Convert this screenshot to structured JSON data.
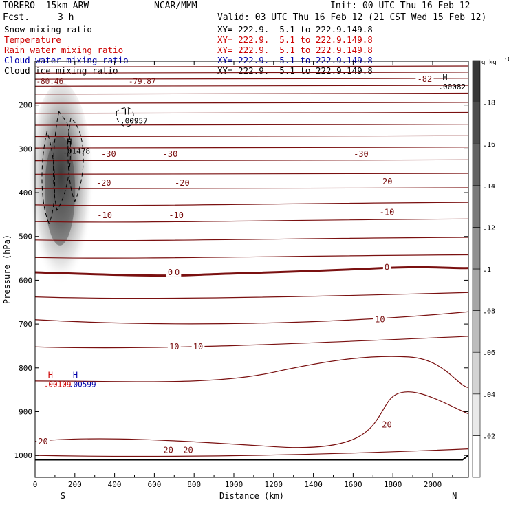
{
  "header": {
    "model": "TORERO  15km ARW",
    "fcst_label": "Fcst.",
    "fcst_value": "3 h",
    "center": "NCAR/MMM",
    "init": "Init: 00 UTC Thu 16 Feb 12",
    "valid": "Valid: 03 UTC Thu 16 Feb 12 (21 CST Wed 15 Feb 12)"
  },
  "fields": [
    {
      "label": "Snow mixing ratio",
      "xy": "XY= 222.9.  5.1 to 222.9.149.8",
      "color": "#000000"
    },
    {
      "label": "Temperature",
      "xy": "XY= 222.9.  5.1 to 222.9.149.8",
      "color": "#cc0000"
    },
    {
      "label": "Rain water mixing ratio",
      "xy": "XY= 222.9.  5.1 to 222.9.149.8",
      "color": "#cc0000"
    },
    {
      "label": "Cloud water mixing ratio",
      "xy": "XY= 222.9.  5.1 to 222.9.149.8",
      "color": "#0000aa"
    },
    {
      "label": "Cloud ice mixing ratio",
      "xy": "XY= 222.9.  5.1 to 222.9.149.8",
      "color": "#000000"
    }
  ],
  "chart_data": {
    "type": "cross-section",
    "xlabel": "Distance (km)",
    "ylabel": "Pressure (hPa)",
    "xlim": [
      0,
      2180
    ],
    "ylim": [
      1050,
      100
    ],
    "x_ticks": [
      0,
      200,
      400,
      600,
      800,
      1000,
      1200,
      1400,
      1600,
      1800,
      2000
    ],
    "y_ticks": [
      200,
      300,
      400,
      500,
      600,
      700,
      800,
      900,
      1000
    ],
    "left_end_label": "S",
    "right_end_label": "N",
    "colorbar": {
      "unit": "g kg",
      "unit_exp": "-1",
      "ticks": [
        ".02",
        ".04",
        ".06",
        ".08",
        ".1",
        ".12",
        ".14",
        ".16",
        ".18"
      ],
      "min": 0,
      "max": 0.2,
      "levels": 10
    },
    "temperature_labels": [
      {
        "text": "-30",
        "x": 370,
        "p": 312
      },
      {
        "text": "-30",
        "x": 680,
        "p": 312
      },
      {
        "text": "-30",
        "x": 1640,
        "p": 312
      },
      {
        "text": "-20",
        "x": 345,
        "p": 378
      },
      {
        "text": "-20",
        "x": 740,
        "p": 378
      },
      {
        "text": "-20",
        "x": 1760,
        "p": 375
      },
      {
        "text": "-10",
        "x": 350,
        "p": 452
      },
      {
        "text": "-10",
        "x": 710,
        "p": 452
      },
      {
        "text": "-10",
        "x": 1770,
        "p": 445
      },
      {
        "text": "0",
        "x": 680,
        "p": 582
      },
      {
        "text": "0",
        "x": 715,
        "p": 582
      },
      {
        "text": "0",
        "x": 1770,
        "p": 570
      },
      {
        "text": "10",
        "x": 1735,
        "p": 690
      },
      {
        "text": "10",
        "x": 700,
        "p": 752
      },
      {
        "text": "10",
        "x": 820,
        "p": 752
      },
      {
        "text": "20",
        "x": 40,
        "p": 968
      },
      {
        "text": "20",
        "x": 670,
        "p": 988
      },
      {
        "text": "20",
        "x": 770,
        "p": 988
      },
      {
        "text": "20",
        "x": 1770,
        "p": 930
      },
      {
        "text": "-82",
        "x": 1960,
        "p": 141
      }
    ],
    "extrema": [
      {
        "mark": "H",
        "value": ".00957",
        "x": 450,
        "p": 222,
        "color": "#000000"
      },
      {
        "mark": "H",
        "value": ".01478",
        "x": 160,
        "p": 291,
        "color": "#000000"
      },
      {
        "mark": "H",
        "value": ".00082",
        "x": 2050,
        "p": 144,
        "color": "#000000"
      },
      {
        "mark": "H",
        "value": ".00109",
        "x": 65,
        "p": 823,
        "color": "#cc0000"
      },
      {
        "mark": "H",
        "value": ".00599",
        "x": 190,
        "p": 823,
        "color": "#0000aa"
      }
    ],
    "top_labels": [
      {
        "text": "-80.46",
        "x": 5,
        "p": 136
      },
      {
        "text": "-79.87",
        "x": 470,
        "p": 136
      }
    ]
  }
}
